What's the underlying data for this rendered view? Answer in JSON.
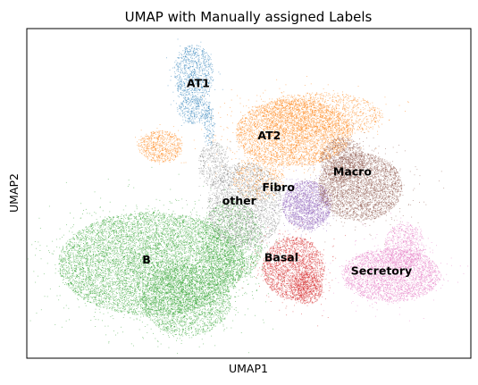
{
  "chart_data": {
    "type": "scatter",
    "title": "UMAP with Manually assigned Labels",
    "xlabel": "UMAP1",
    "ylabel": "UMAP2",
    "grid": false,
    "legend": "on data",
    "xlim": [
      0,
      10
    ],
    "ylim": [
      0,
      7.3
    ],
    "series": [
      {
        "name": "AT1",
        "color": "#1f77b4",
        "blobs": [
          {
            "cx": 3.75,
            "cy": 6.3,
            "rx": 0.45,
            "ry": 0.65,
            "n": 900
          },
          {
            "cx": 3.75,
            "cy": 5.5,
            "rx": 0.35,
            "ry": 0.3,
            "n": 300
          },
          {
            "cx": 4.1,
            "cy": 5.2,
            "rx": 0.12,
            "ry": 0.5,
            "n": 150
          }
        ]
      },
      {
        "name": "AT2",
        "color": "#ff7f0e",
        "blobs": [
          {
            "cx": 6.0,
            "cy": 5.0,
            "rx": 1.3,
            "ry": 0.75,
            "n": 4000
          },
          {
            "cx": 6.6,
            "cy": 5.4,
            "rx": 1.4,
            "ry": 0.5,
            "n": 1200
          },
          {
            "cx": 3.0,
            "cy": 4.7,
            "rx": 0.5,
            "ry": 0.35,
            "n": 700
          },
          {
            "cx": 5.2,
            "cy": 4.0,
            "rx": 0.6,
            "ry": 0.5,
            "n": 500
          }
        ]
      },
      {
        "name": "B",
        "color": "#2ca02c",
        "blobs": [
          {
            "cx": 2.8,
            "cy": 2.1,
            "rx": 2.1,
            "ry": 1.15,
            "n": 9000
          },
          {
            "cx": 3.6,
            "cy": 1.3,
            "rx": 1.0,
            "ry": 0.8,
            "n": 2500
          },
          {
            "cx": 4.6,
            "cy": 2.6,
            "rx": 0.7,
            "ry": 0.9,
            "n": 1500
          }
        ]
      },
      {
        "name": "Basal",
        "color": "#d62728",
        "blobs": [
          {
            "cx": 6.0,
            "cy": 2.0,
            "rx": 0.7,
            "ry": 0.7,
            "n": 2300
          },
          {
            "cx": 6.3,
            "cy": 1.55,
            "rx": 0.35,
            "ry": 0.35,
            "n": 600
          }
        ]
      },
      {
        "name": "Fibro",
        "color": "#9467bd",
        "blobs": [
          {
            "cx": 6.3,
            "cy": 3.4,
            "rx": 0.55,
            "ry": 0.55,
            "n": 2000
          }
        ]
      },
      {
        "name": "Macro",
        "color": "#8c564b",
        "blobs": [
          {
            "cx": 7.5,
            "cy": 3.8,
            "rx": 0.95,
            "ry": 0.75,
            "n": 3500
          },
          {
            "cx": 7.1,
            "cy": 4.4,
            "rx": 0.5,
            "ry": 0.5,
            "n": 1000
          }
        ]
      },
      {
        "name": "Secretory",
        "color": "#e377c2",
        "blobs": [
          {
            "cx": 8.2,
            "cy": 1.85,
            "rx": 1.1,
            "ry": 0.6,
            "n": 3000
          },
          {
            "cx": 8.5,
            "cy": 2.5,
            "rx": 0.45,
            "ry": 0.5,
            "n": 700
          }
        ]
      },
      {
        "name": "other",
        "color": "#7f7f7f",
        "blobs": [
          {
            "cx": 4.9,
            "cy": 3.4,
            "rx": 0.85,
            "ry": 0.95,
            "n": 2200
          },
          {
            "cx": 4.2,
            "cy": 4.3,
            "rx": 0.35,
            "ry": 0.5,
            "n": 400
          }
        ]
      }
    ],
    "cluster_labels": [
      {
        "text": "AT1",
        "x": 3.6,
        "y": 6.0
      },
      {
        "text": "AT2",
        "x": 5.2,
        "y": 4.85
      },
      {
        "text": "Macro",
        "x": 6.9,
        "y": 4.05
      },
      {
        "text": "Fibro",
        "x": 5.3,
        "y": 3.7
      },
      {
        "text": "other",
        "x": 4.4,
        "y": 3.4
      },
      {
        "text": "B",
        "x": 2.6,
        "y": 2.1
      },
      {
        "text": "Basal",
        "x": 5.35,
        "y": 2.15
      },
      {
        "text": "Secretory",
        "x": 7.3,
        "y": 1.85
      }
    ]
  }
}
